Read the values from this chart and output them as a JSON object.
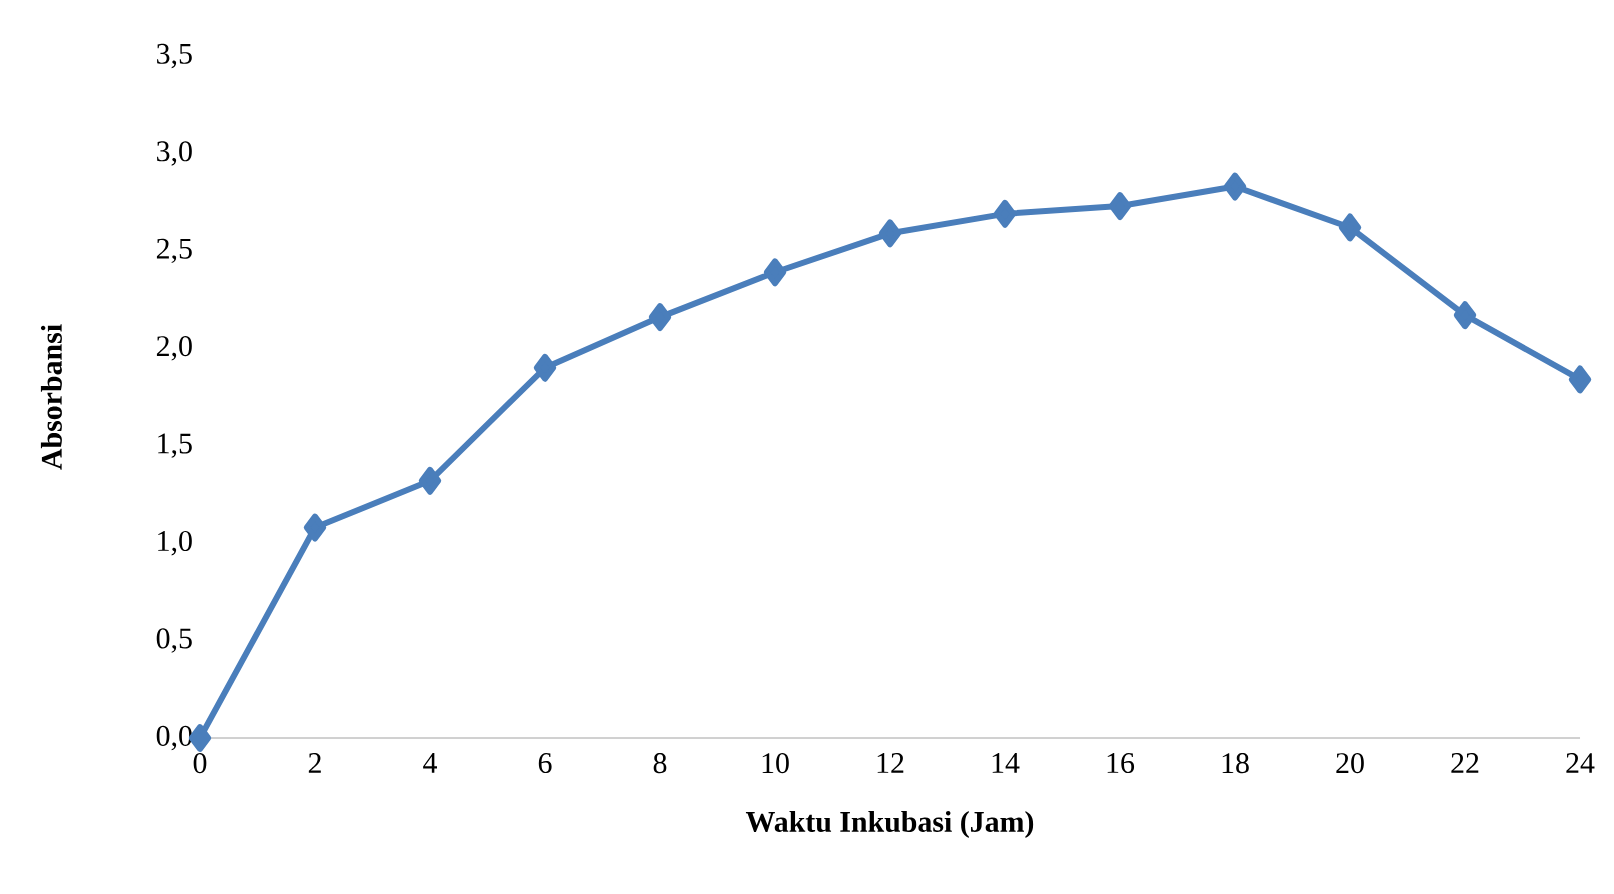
{
  "chart_data": {
    "type": "line",
    "xlabel": "Waktu Inkubasi (Jam)",
    "ylabel": "Absorbansi",
    "x": [
      0,
      2,
      4,
      6,
      8,
      10,
      12,
      14,
      16,
      18,
      20,
      22,
      24
    ],
    "series": [
      {
        "color": "#4a7ebb",
        "values": [
          0,
          1.08,
          1.32,
          1.9,
          2.16,
          2.39,
          2.59,
          2.69,
          2.73,
          2.83,
          2.62,
          2.17,
          1.84
        ]
      }
    ],
    "xlim": [
      0,
      24
    ],
    "xticks": [
      0,
      2,
      4,
      6,
      8,
      10,
      12,
      14,
      16,
      18,
      20,
      22,
      24
    ],
    "ylim": [
      0,
      3.5
    ],
    "yticks": [
      {
        "value": 0,
        "label": "0,0"
      },
      {
        "value": 0.5,
        "label": "0,5"
      },
      {
        "value": 1,
        "label": "1,0"
      },
      {
        "value": 1.5,
        "label": "1,5"
      },
      {
        "value": 2,
        "label": "2,0"
      },
      {
        "value": 2.5,
        "label": "2,5"
      },
      {
        "value": 3,
        "label": "3,0"
      },
      {
        "value": 3.5,
        "label": "3,5"
      }
    ],
    "grid": false,
    "marker": "diamond",
    "line_style": "solid"
  }
}
